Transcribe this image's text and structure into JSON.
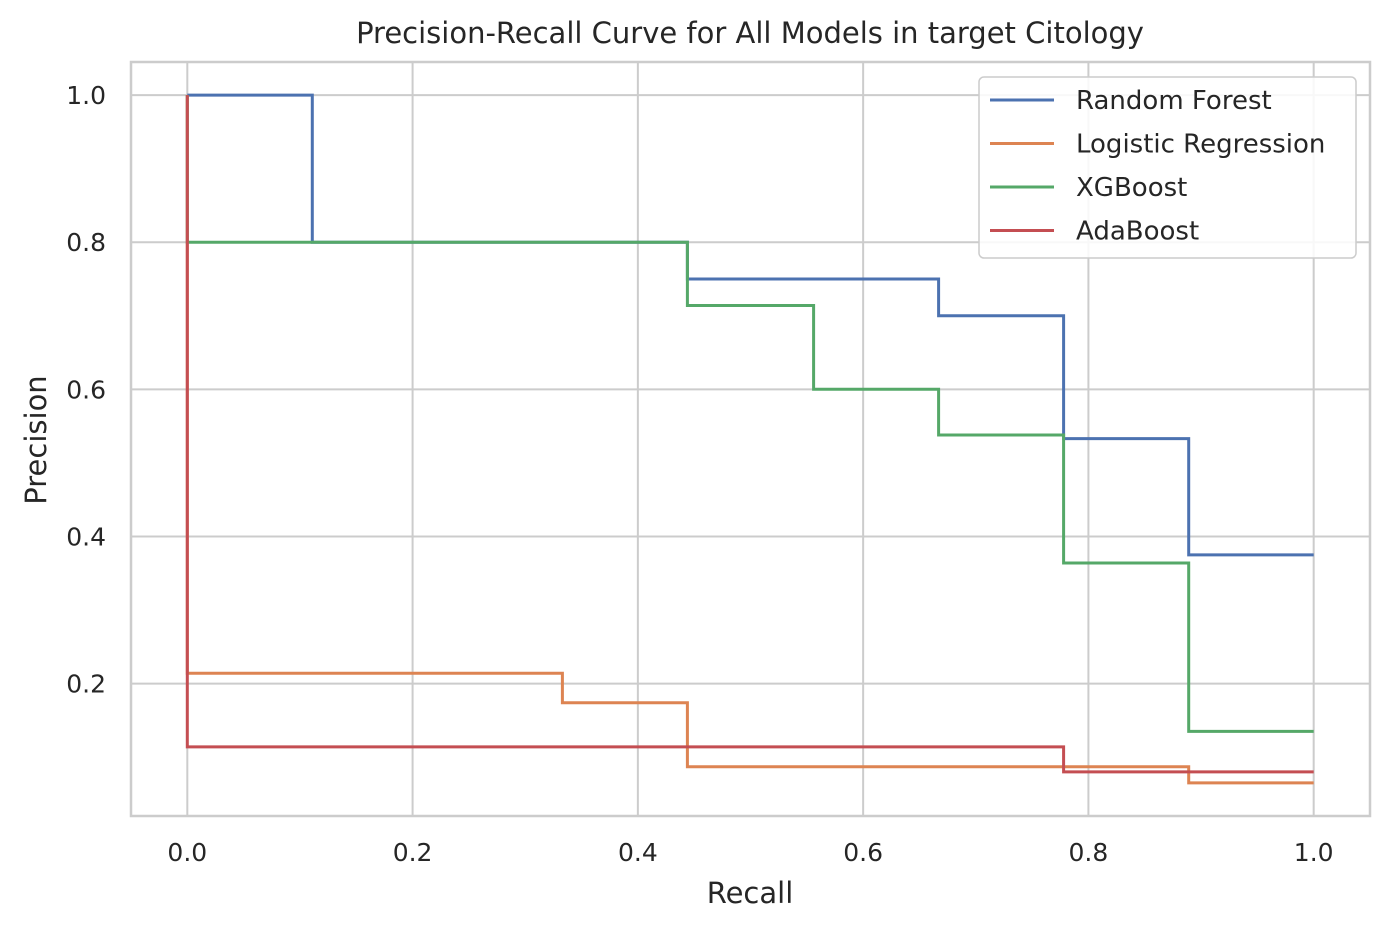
{
  "chart_data": {
    "type": "line",
    "title": "Precision-Recall Curve for All Models in target Citology",
    "xlabel": "Recall",
    "ylabel": "Precision",
    "xlim": [
      -0.05,
      1.05
    ],
    "ylim": [
      0.02,
      1.045
    ],
    "xticks": [
      0.0,
      0.2,
      0.4,
      0.6,
      0.8,
      1.0
    ],
    "xtick_labels": [
      "0.0",
      "0.2",
      "0.4",
      "0.6",
      "0.8",
      "1.0"
    ],
    "yticks": [
      0.2,
      0.4,
      0.6,
      0.8,
      1.0
    ],
    "ytick_labels": [
      "0.2",
      "0.4",
      "0.6",
      "0.8",
      "1.0"
    ],
    "grid": true,
    "legend_position": "top-right",
    "step_style": "post",
    "series": [
      {
        "name": "Random Forest",
        "color": "#4c72b0",
        "recall": [
          0.0,
          0.111,
          0.444,
          0.667,
          0.778,
          0.889,
          1.0
        ],
        "precision": [
          1.0,
          0.8,
          0.75,
          0.7,
          0.533,
          0.375,
          0.375
        ]
      },
      {
        "name": "Logistic Regression",
        "color": "#dd8452",
        "recall": [
          0.0,
          0.0,
          0.333,
          0.444,
          0.889,
          1.0
        ],
        "precision": [
          1.0,
          0.214,
          0.174,
          0.087,
          0.065,
          0.065
        ]
      },
      {
        "name": "XGBoost",
        "color": "#55a868",
        "recall": [
          0.0,
          0.0,
          0.444,
          0.556,
          0.667,
          0.778,
          0.889,
          1.0
        ],
        "precision": [
          1.0,
          0.8,
          0.714,
          0.6,
          0.538,
          0.364,
          0.135,
          0.135
        ]
      },
      {
        "name": "AdaBoost",
        "color": "#c44e52",
        "recall": [
          0.0,
          0.0,
          0.778,
          1.0
        ],
        "precision": [
          1.0,
          0.114,
          0.08,
          0.08
        ]
      }
    ]
  }
}
